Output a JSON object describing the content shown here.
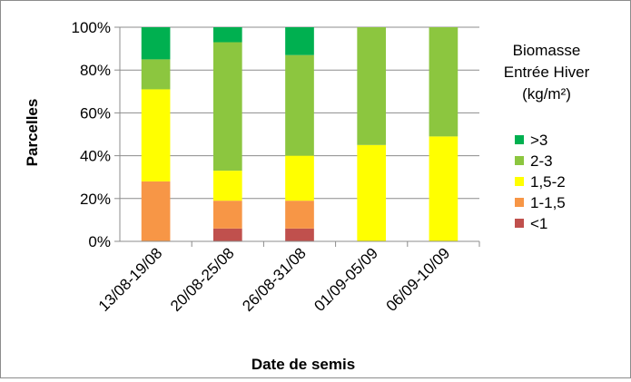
{
  "chart_data": {
    "type": "bar",
    "stacked": "percent",
    "title": "",
    "xlabel": "Date de semis",
    "ylabel": "Parcelles",
    "ylim": [
      0,
      100
    ],
    "y_ticks": [
      "0%",
      "20%",
      "40%",
      "60%",
      "80%",
      "100%"
    ],
    "grid": true,
    "legend_position": "right",
    "legend_title": [
      "Biomasse",
      "Entrée Hiver",
      "(kg/m²)"
    ],
    "categories": [
      "13/08-19/08",
      "20/08-25/08",
      "26/08-31/08",
      "01/09-05/09",
      "06/09-10/09"
    ],
    "series": [
      {
        "name": "<1",
        "color": "#c0504d",
        "values": [
          0,
          6,
          6,
          0,
          0
        ]
      },
      {
        "name": "1-1,5",
        "color": "#f79646",
        "values": [
          28,
          13,
          13,
          0,
          0
        ]
      },
      {
        "name": "1,5-2",
        "color": "#ffff00",
        "values": [
          43,
          14,
          21,
          45,
          49
        ]
      },
      {
        "name": "2-3",
        "color": "#8cc63f",
        "values": [
          14,
          60,
          47,
          55,
          51
        ]
      },
      {
        "name": ">3",
        "color": "#00b050",
        "values": [
          15,
          7,
          13,
          0,
          0
        ]
      }
    ]
  }
}
